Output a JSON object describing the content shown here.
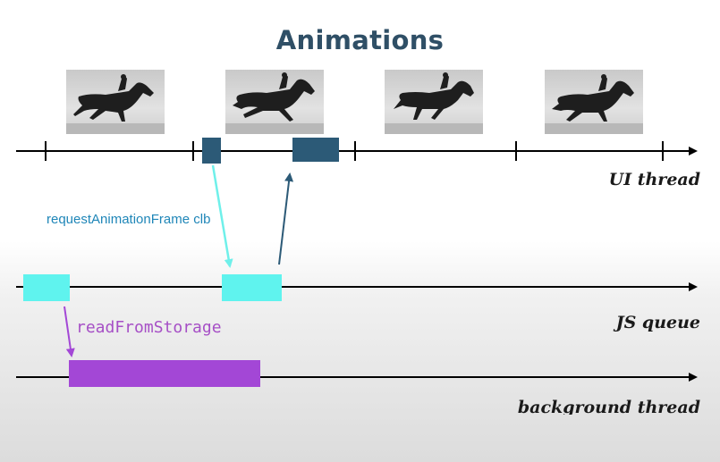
{
  "title": "Animations",
  "threads": {
    "ui": "UI thread",
    "js": "JS queue",
    "background": "background thread"
  },
  "annotations": {
    "raf_callback": "requestAnimationFrame clb",
    "read_from_storage": "readFromStorage"
  },
  "colors": {
    "title": "#2f4f66",
    "ui_task": "#2c5a77",
    "js_task": "#5ff3ee",
    "background_task": "#a347d6",
    "raf_arrow": "#6ff0ea",
    "return_arrow": "#2c5a77",
    "storage_arrow": "#a347d6",
    "axis": "#000000"
  },
  "frame_images": [
    "galloping-horse-frame",
    "galloping-horse-frame",
    "galloping-horse-frame",
    "galloping-horse-frame"
  ]
}
